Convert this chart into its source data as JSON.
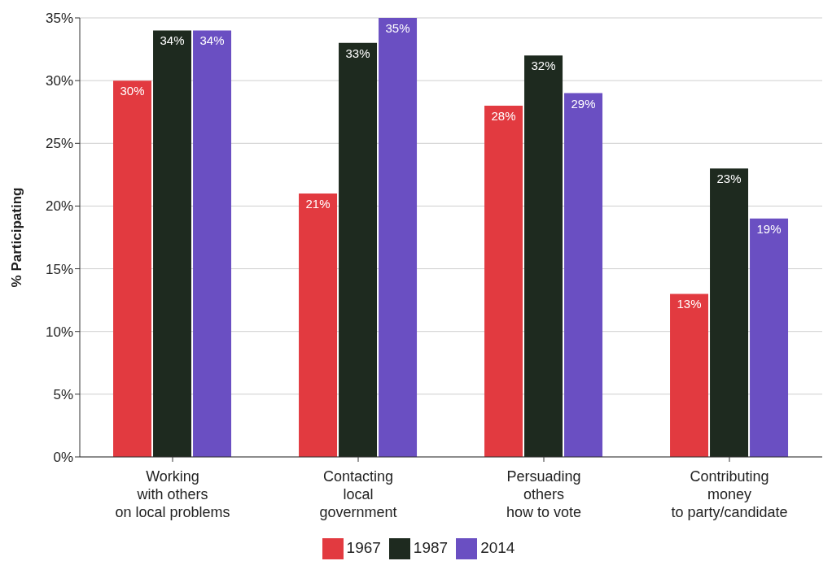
{
  "chart_data": {
    "type": "bar",
    "ylabel": "% Participating",
    "categories": [
      "Working\nwith others\non local problems",
      "Contacting\nlocal\ngovernment",
      "Persuading\nothers\nhow to vote",
      "Contributing\nmoney\nto party/candidate"
    ],
    "series": [
      {
        "name": "1967",
        "color": "#e23a40",
        "values": [
          30,
          21,
          28,
          13
        ],
        "value_labels": [
          "30%",
          "21%",
          "28%",
          "13%"
        ]
      },
      {
        "name": "1987",
        "color": "#1e2a1f",
        "values": [
          34,
          33,
          32,
          23
        ],
        "value_labels": [
          "34%",
          "33%",
          "32%",
          "23%"
        ]
      },
      {
        "name": "2014",
        "color": "#6a4fc2",
        "values": [
          34,
          35,
          29,
          19
        ],
        "value_labels": [
          "34%",
          "35%",
          "29%",
          "19%"
        ]
      }
    ],
    "ylim": [
      0,
      35
    ],
    "yticks": [
      {
        "value": 0,
        "label": "0%"
      },
      {
        "value": 5,
        "label": "5%"
      },
      {
        "value": 10,
        "label": "10%"
      },
      {
        "value": 15,
        "label": "15%"
      },
      {
        "value": 20,
        "label": "20%"
      },
      {
        "value": 25,
        "label": "25%"
      },
      {
        "value": 30,
        "label": "30%"
      },
      {
        "value": 35,
        "label": "35%"
      }
    ],
    "grid": "y",
    "legend": "bottom"
  }
}
